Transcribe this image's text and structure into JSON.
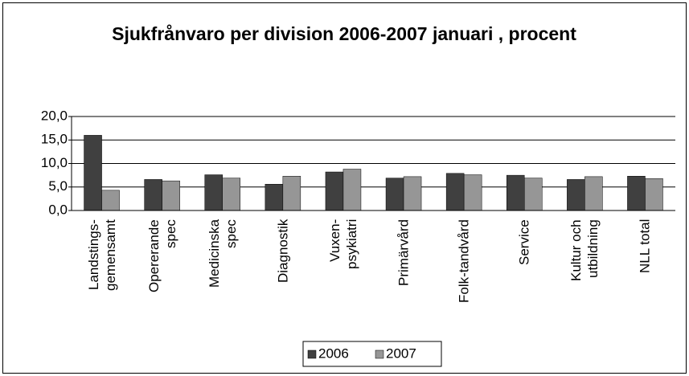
{
  "chart_data": {
    "type": "bar",
    "title": "Sjukfrånvaro per division 2006-2007 januari , procent",
    "categories": [
      "Landstings-gemensamt",
      "Opererande spec",
      "Medicinska spec",
      "Diagnostik",
      "Vuxen-psykiatri",
      "Primärvård",
      "Folk-tandvård",
      "Service",
      "Kultur och utbildning",
      "NLL total"
    ],
    "series": [
      {
        "name": "2006",
        "color": "#404040",
        "values": [
          16.0,
          6.6,
          7.6,
          5.6,
          8.2,
          6.9,
          7.9,
          7.5,
          6.6,
          7.3
        ]
      },
      {
        "name": "2007",
        "color": "#969696",
        "values": [
          4.3,
          6.3,
          6.9,
          7.3,
          8.8,
          7.2,
          7.6,
          6.9,
          7.2,
          6.8
        ]
      }
    ],
    "ylim": [
      0,
      20
    ],
    "yticks": [
      {
        "value": 0,
        "label": "0,0"
      },
      {
        "value": 5,
        "label": "5,0"
      },
      {
        "value": 10,
        "label": "10,0"
      },
      {
        "value": 15,
        "label": "15,0"
      },
      {
        "value": 20,
        "label": "20,0"
      }
    ],
    "grid": true,
    "legend": "bottom"
  }
}
